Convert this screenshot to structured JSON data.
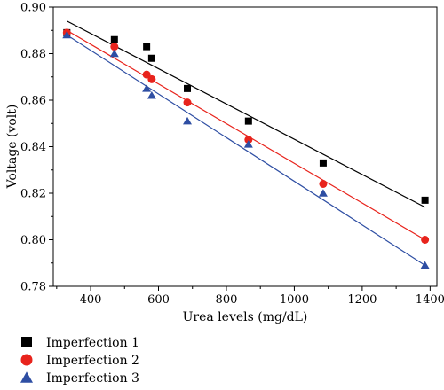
{
  "chart_data": {
    "type": "scatter",
    "xlabel": "Urea levels (mg/dL)",
    "ylabel": "Voltage (volt)",
    "xlim": [
      290,
      1420
    ],
    "ylim": [
      0.78,
      0.9
    ],
    "x_ticks": [
      400,
      600,
      800,
      1000,
      1200,
      1400
    ],
    "y_ticks": [
      0.78,
      0.8,
      0.82,
      0.84,
      0.86,
      0.88,
      0.9
    ],
    "x_tick_labels": [
      "400",
      "600",
      "800",
      "1000",
      "1200",
      "1400"
    ],
    "y_tick_labels": [
      "0.78",
      "0.80",
      "0.82",
      "0.84",
      "0.86",
      "0.88",
      "0.90"
    ],
    "legend_position": "bottom-left, below plot",
    "series": [
      {
        "name": "Imperfection 1",
        "marker": "square",
        "color": "#000000",
        "x": [
          330,
          470,
          565,
          580,
          685,
          865,
          1085,
          1385
        ],
        "y": [
          0.889,
          0.886,
          0.883,
          0.878,
          0.865,
          0.851,
          0.833,
          0.817
        ],
        "fit_line": {
          "x": [
            330,
            1385
          ],
          "y": [
            0.894,
            0.814
          ]
        }
      },
      {
        "name": "Imperfection 2",
        "marker": "circle",
        "color": "#e8231c",
        "x": [
          330,
          470,
          565,
          580,
          685,
          865,
          1085,
          1385
        ],
        "y": [
          0.889,
          0.883,
          0.871,
          0.869,
          0.859,
          0.843,
          0.824,
          0.8
        ],
        "fit_line": {
          "x": [
            330,
            1385
          ],
          "y": [
            0.89,
            0.8
          ]
        }
      },
      {
        "name": "Imperfection 3",
        "marker": "triangle",
        "color": "#2e4ea3",
        "x": [
          330,
          470,
          565,
          580,
          685,
          865,
          1085,
          1385
        ],
        "y": [
          0.888,
          0.88,
          0.865,
          0.862,
          0.851,
          0.841,
          0.82,
          0.789
        ],
        "fit_line": {
          "x": [
            330,
            1385
          ],
          "y": [
            0.888,
            0.789
          ]
        }
      }
    ]
  }
}
